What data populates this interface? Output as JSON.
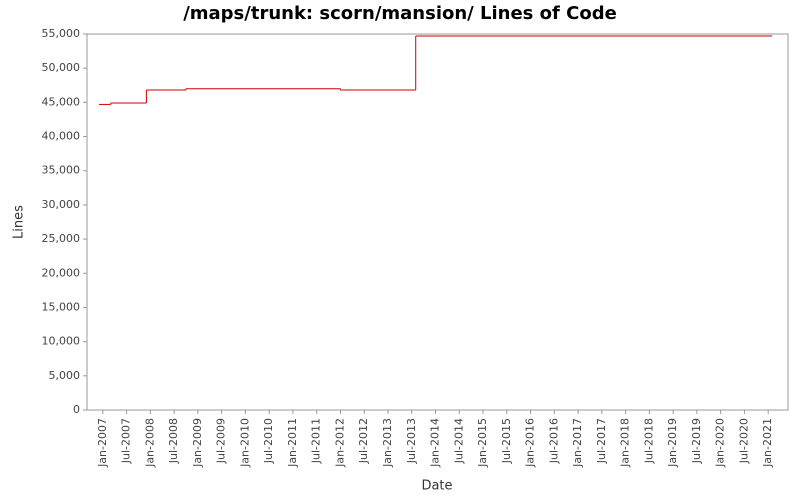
{
  "chart_data": {
    "type": "step",
    "title": "/maps/trunk: scorn/mansion/ Lines of Code",
    "xlabel": "Date",
    "ylabel": "Lines",
    "series": [
      {
        "name": "Lines",
        "color": "#cc0000",
        "x": [
          "2006-12",
          "2007-03",
          "2007-12",
          "2008-10",
          "2012-01",
          "2013-08",
          "2021-02"
        ],
        "values": [
          44700,
          44900,
          46800,
          47000,
          46800,
          54700,
          54700
        ]
      }
    ],
    "xlim": [
      "2006-09",
      "2021-06"
    ],
    "xticks": [
      {
        "value": "2007-01",
        "label": "Jan-2007"
      },
      {
        "value": "2007-07",
        "label": "Jul-2007"
      },
      {
        "value": "2008-01",
        "label": "Jan-2008"
      },
      {
        "value": "2008-07",
        "label": "Jul-2008"
      },
      {
        "value": "2009-01",
        "label": "Jan-2009"
      },
      {
        "value": "2009-07",
        "label": "Jul-2009"
      },
      {
        "value": "2010-01",
        "label": "Jan-2010"
      },
      {
        "value": "2010-07",
        "label": "Jul-2010"
      },
      {
        "value": "2011-01",
        "label": "Jan-2011"
      },
      {
        "value": "2011-07",
        "label": "Jul-2011"
      },
      {
        "value": "2012-01",
        "label": "Jan-2012"
      },
      {
        "value": "2012-07",
        "label": "Jul-2012"
      },
      {
        "value": "2013-01",
        "label": "Jan-2013"
      },
      {
        "value": "2013-07",
        "label": "Jul-2013"
      },
      {
        "value": "2014-01",
        "label": "Jan-2014"
      },
      {
        "value": "2014-07",
        "label": "Jul-2014"
      },
      {
        "value": "2015-01",
        "label": "Jan-2015"
      },
      {
        "value": "2015-07",
        "label": "Jul-2015"
      },
      {
        "value": "2016-01",
        "label": "Jan-2016"
      },
      {
        "value": "2016-07",
        "label": "Jul-2016"
      },
      {
        "value": "2017-01",
        "label": "Jan-2017"
      },
      {
        "value": "2017-07",
        "label": "Jul-2017"
      },
      {
        "value": "2018-01",
        "label": "Jan-2018"
      },
      {
        "value": "2018-07",
        "label": "Jul-2018"
      },
      {
        "value": "2019-01",
        "label": "Jan-2019"
      },
      {
        "value": "2019-07",
        "label": "Jul-2019"
      },
      {
        "value": "2020-01",
        "label": "Jan-2020"
      },
      {
        "value": "2020-07",
        "label": "Jul-2020"
      },
      {
        "value": "2021-01",
        "label": "Jan-2021"
      }
    ],
    "ylim": [
      0,
      55000
    ],
    "yticks": [
      0,
      {
        "value": 5000,
        "label": "5,000"
      },
      {
        "value": 10000,
        "label": "10,000"
      },
      {
        "value": 15000,
        "label": "15,000"
      },
      {
        "value": 20000,
        "label": "20,000"
      },
      {
        "value": 25000,
        "label": "25,000"
      },
      {
        "value": 30000,
        "label": "30,000"
      },
      {
        "value": 35000,
        "label": "35,000"
      },
      {
        "value": 40000,
        "label": "40,000"
      },
      {
        "value": 45000,
        "label": "45,000"
      },
      {
        "value": 50000,
        "label": "50,000"
      },
      {
        "value": 55000,
        "label": "55,000"
      }
    ],
    "grid": false
  }
}
